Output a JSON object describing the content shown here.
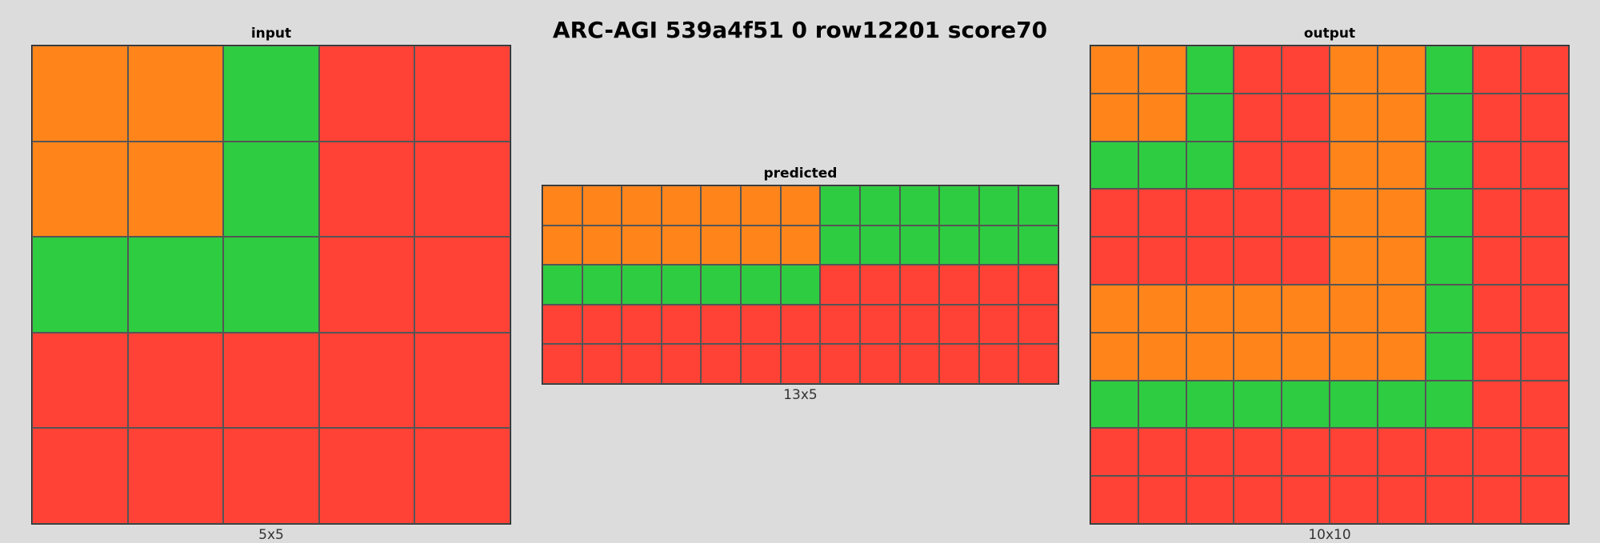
{
  "title": "ARC-AGI 539a4f51 0 row12201 score70",
  "palette": {
    "7": "#ff851b",
    "3": "#2ecc40",
    "2": "#ff4136"
  },
  "panels": [
    {
      "id": "input",
      "label": "input",
      "dims_label": "5x5",
      "rows": [
        [
          7,
          7,
          3,
          2,
          2
        ],
        [
          7,
          7,
          3,
          2,
          2
        ],
        [
          3,
          3,
          3,
          2,
          2
        ],
        [
          2,
          2,
          2,
          2,
          2
        ],
        [
          2,
          2,
          2,
          2,
          2
        ]
      ]
    },
    {
      "id": "predicted",
      "label": "predicted",
      "dims_label": "13x5",
      "rows": [
        [
          7,
          7,
          7,
          7,
          7,
          7,
          7,
          3,
          3,
          3,
          3,
          3,
          3
        ],
        [
          7,
          7,
          7,
          7,
          7,
          7,
          7,
          3,
          3,
          3,
          3,
          3,
          3
        ],
        [
          3,
          3,
          3,
          3,
          3,
          3,
          3,
          2,
          2,
          2,
          2,
          2,
          2
        ],
        [
          2,
          2,
          2,
          2,
          2,
          2,
          2,
          2,
          2,
          2,
          2,
          2,
          2
        ],
        [
          2,
          2,
          2,
          2,
          2,
          2,
          2,
          2,
          2,
          2,
          2,
          2,
          2
        ]
      ]
    },
    {
      "id": "output",
      "label": "output",
      "dims_label": "10x10",
      "rows": [
        [
          7,
          7,
          3,
          2,
          2,
          7,
          7,
          3,
          2,
          2
        ],
        [
          7,
          7,
          3,
          2,
          2,
          7,
          7,
          3,
          2,
          2
        ],
        [
          3,
          3,
          3,
          2,
          2,
          7,
          7,
          3,
          2,
          2
        ],
        [
          2,
          2,
          2,
          2,
          2,
          7,
          7,
          3,
          2,
          2
        ],
        [
          2,
          2,
          2,
          2,
          2,
          7,
          7,
          3,
          2,
          2
        ],
        [
          7,
          7,
          7,
          7,
          7,
          7,
          7,
          3,
          2,
          2
        ],
        [
          7,
          7,
          7,
          7,
          7,
          7,
          7,
          3,
          2,
          2
        ],
        [
          3,
          3,
          3,
          3,
          3,
          3,
          3,
          3,
          2,
          2
        ],
        [
          2,
          2,
          2,
          2,
          2,
          2,
          2,
          2,
          2,
          2
        ],
        [
          2,
          2,
          2,
          2,
          2,
          2,
          2,
          2,
          2,
          2
        ]
      ]
    }
  ]
}
